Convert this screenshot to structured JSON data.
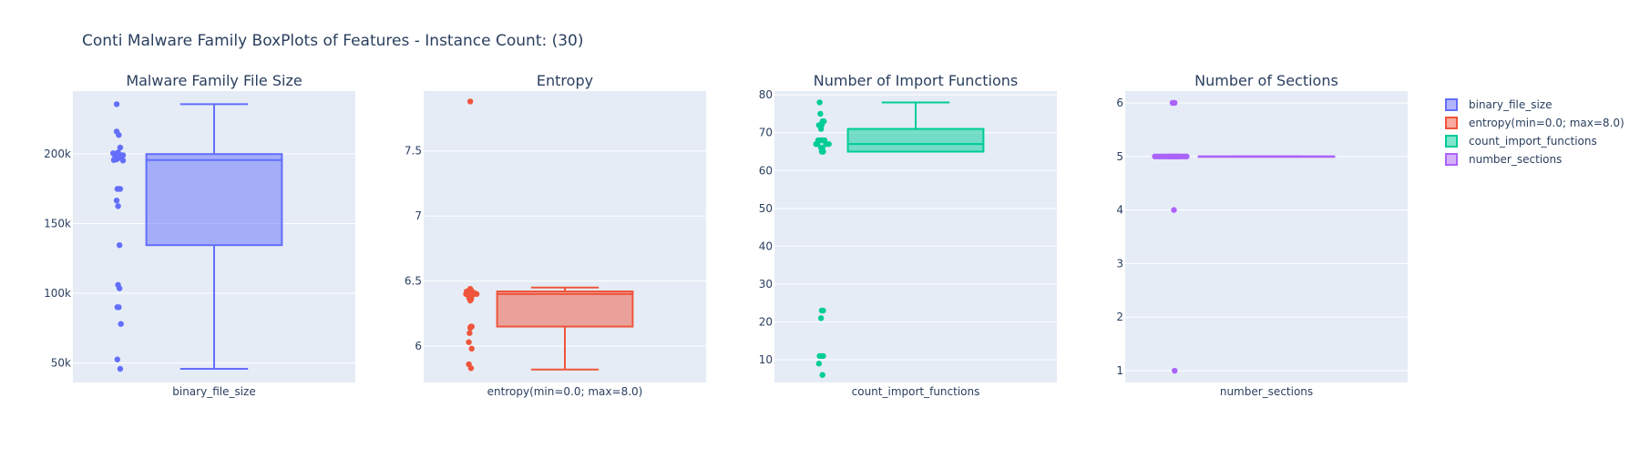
{
  "title": "Conti Malware Family BoxPlots of Features - Instance Count: (30)",
  "legend": {
    "placement": "right",
    "items": [
      {
        "label": "binary_file_size",
        "color": "#636efa"
      },
      {
        "label": "entropy(min=0.0; max=8.0)",
        "color": "#ef553b"
      },
      {
        "label": "count_import_functions",
        "color": "#00cc96"
      },
      {
        "label": "number_sections",
        "color": "#ab63fa"
      }
    ]
  },
  "chart_data": [
    {
      "type": "box",
      "title": "Malware Family File Size",
      "xlabel": "",
      "category": "binary_file_size",
      "color": "#636efa",
      "ylim": [
        36000,
        245000
      ],
      "yticks": [
        50000,
        100000,
        150000,
        200000
      ],
      "ytick_labels": [
        "50k",
        "100k",
        "150k",
        "200k"
      ],
      "box": {
        "min": 45800,
        "q1": 134500,
        "median": 195500,
        "q3": 199800,
        "max": 235600
      },
      "points": [
        {
          "y": 235600,
          "j": 0.1
        },
        {
          "y": 216000,
          "j": 0.1
        },
        {
          "y": 213500,
          "j": 0.25
        },
        {
          "y": 204500,
          "j": 0.35
        },
        {
          "y": 201000,
          "j": 0.2
        },
        {
          "y": 200400,
          "j": -0.15
        },
        {
          "y": 200000,
          "j": 0.05
        },
        {
          "y": 199500,
          "j": 0.3
        },
        {
          "y": 199000,
          "j": 0.55
        },
        {
          "y": 198500,
          "j": 0.15
        },
        {
          "y": 198000,
          "j": 0.4
        },
        {
          "y": 197500,
          "j": 0.0
        },
        {
          "y": 196800,
          "j": 0.2
        },
        {
          "y": 196300,
          "j": -0.05
        },
        {
          "y": 196000,
          "j": 0.1
        },
        {
          "y": 195500,
          "j": -0.1
        },
        {
          "y": 195200,
          "j": 0.55
        },
        {
          "y": 174800,
          "j": 0.15
        },
        {
          "y": 174800,
          "j": 0.25
        },
        {
          "y": 174800,
          "j": 0.35
        },
        {
          "y": 166500,
          "j": 0.1
        },
        {
          "y": 162500,
          "j": 0.2
        },
        {
          "y": 134500,
          "j": 0.3
        },
        {
          "y": 106000,
          "j": 0.2
        },
        {
          "y": 103500,
          "j": 0.3
        },
        {
          "y": 90000,
          "j": 0.15
        },
        {
          "y": 90000,
          "j": 0.25
        },
        {
          "y": 78000,
          "j": 0.4
        },
        {
          "y": 52500,
          "j": 0.15
        },
        {
          "y": 45800,
          "j": 0.35
        }
      ]
    },
    {
      "type": "box",
      "title": "Entropy",
      "xlabel": "",
      "category": "entropy(min=0.0; max=8.0)",
      "color": "#ef553b",
      "ylim": [
        5.72,
        7.96
      ],
      "yticks": [
        6,
        6.5,
        7,
        7.5
      ],
      "ytick_labels": [
        "6",
        "6.5",
        "7",
        "7.5"
      ],
      "box": {
        "min": 5.82,
        "q1": 6.15,
        "median": 6.4,
        "q3": 6.42,
        "max": 6.45
      },
      "points": [
        {
          "y": 7.88,
          "j": 0.3
        },
        {
          "y": 6.44,
          "j": 0.3
        },
        {
          "y": 6.43,
          "j": 0.35
        },
        {
          "y": 6.42,
          "j": 0.05
        },
        {
          "y": 6.42,
          "j": 0.2
        },
        {
          "y": 6.41,
          "j": 0.4
        },
        {
          "y": 6.41,
          "j": 0.55
        },
        {
          "y": 6.4,
          "j": 0.0
        },
        {
          "y": 6.4,
          "j": 0.12
        },
        {
          "y": 6.4,
          "j": 0.25
        },
        {
          "y": 6.4,
          "j": 0.32
        },
        {
          "y": 6.4,
          "j": 0.75
        },
        {
          "y": 6.39,
          "j": 0.18
        },
        {
          "y": 6.39,
          "j": 0.45
        },
        {
          "y": 6.38,
          "j": 0.28
        },
        {
          "y": 6.37,
          "j": 0.22
        },
        {
          "y": 6.36,
          "j": 0.36
        },
        {
          "y": 6.35,
          "j": 0.3
        },
        {
          "y": 6.15,
          "j": 0.35
        },
        {
          "y": 6.15,
          "j": 0.4
        },
        {
          "y": 6.14,
          "j": 0.3
        },
        {
          "y": 6.1,
          "j": 0.25
        },
        {
          "y": 6.03,
          "j": 0.2
        },
        {
          "y": 5.98,
          "j": 0.4
        },
        {
          "y": 5.86,
          "j": 0.2
        },
        {
          "y": 5.83,
          "j": 0.35
        }
      ]
    },
    {
      "type": "box",
      "title": "Number of Import Functions",
      "xlabel": "",
      "category": "count_import_functions",
      "color": "#00cc96",
      "ylim": [
        4,
        81
      ],
      "yticks": [
        10,
        20,
        30,
        40,
        50,
        60,
        70,
        80
      ],
      "ytick_labels": [
        "10",
        "20",
        "30",
        "40",
        "50",
        "60",
        "70",
        "80"
      ],
      "box": {
        "min": 65,
        "q1": 65,
        "median": 67,
        "q3": 71,
        "max": 78
      },
      "points": [
        {
          "y": 78,
          "j": 0.2
        },
        {
          "y": 75,
          "j": 0.25
        },
        {
          "y": 73,
          "j": 0.4
        },
        {
          "y": 73,
          "j": 0.5
        },
        {
          "y": 72,
          "j": 0.15
        },
        {
          "y": 72,
          "j": 0.35
        },
        {
          "y": 71,
          "j": 0.3
        },
        {
          "y": 68,
          "j": 0.1
        },
        {
          "y": 68,
          "j": 0.25
        },
        {
          "y": 68,
          "j": 0.35
        },
        {
          "y": 68,
          "j": 0.45
        },
        {
          "y": 68,
          "j": 0.55
        },
        {
          "y": 67,
          "j": -0.05
        },
        {
          "y": 67,
          "j": 0.05
        },
        {
          "y": 67,
          "j": 0.65
        },
        {
          "y": 67,
          "j": 0.85
        },
        {
          "y": 66,
          "j": 0.3
        },
        {
          "y": 66,
          "j": 0.4
        },
        {
          "y": 65,
          "j": 0.35
        },
        {
          "y": 65,
          "j": 0.45
        },
        {
          "y": 23,
          "j": 0.35
        },
        {
          "y": 23,
          "j": 0.45
        },
        {
          "y": 21,
          "j": 0.3
        },
        {
          "y": 11,
          "j": 0.2
        },
        {
          "y": 11,
          "j": 0.3
        },
        {
          "y": 11,
          "j": 0.45
        },
        {
          "y": 9,
          "j": 0.15
        },
        {
          "y": 6,
          "j": 0.4
        }
      ]
    },
    {
      "type": "box",
      "title": "Number of Sections",
      "xlabel": "",
      "category": "number_sections",
      "color": "#ab63fa",
      "ylim": [
        0.78,
        6.22
      ],
      "yticks": [
        1,
        2,
        3,
        4,
        5,
        6
      ],
      "ytick_labels": [
        "1",
        "2",
        "3",
        "4",
        "5",
        "6"
      ],
      "box": {
        "min": 5,
        "q1": 5,
        "median": 5,
        "q3": 5,
        "max": 5
      },
      "points": [
        {
          "y": 6,
          "j": 0.35
        },
        {
          "y": 6,
          "j": 0.42
        },
        {
          "y": 6,
          "j": 0.5
        },
        {
          "y": 5,
          "j": -0.9
        },
        {
          "y": 5,
          "j": -0.75
        },
        {
          "y": 5,
          "j": -0.6
        },
        {
          "y": 5,
          "j": -0.45
        },
        {
          "y": 5,
          "j": -0.3
        },
        {
          "y": 5,
          "j": -0.15
        },
        {
          "y": 5,
          "j": 0.0
        },
        {
          "y": 5,
          "j": 0.1
        },
        {
          "y": 5,
          "j": 0.2
        },
        {
          "y": 5,
          "j": 0.3
        },
        {
          "y": 5,
          "j": 0.4
        },
        {
          "y": 5,
          "j": 0.5
        },
        {
          "y": 5,
          "j": 0.6
        },
        {
          "y": 5,
          "j": 0.7
        },
        {
          "y": 5,
          "j": 0.8
        },
        {
          "y": 5,
          "j": 0.9
        },
        {
          "y": 5,
          "j": 1.05
        },
        {
          "y": 5,
          "j": 1.2
        },
        {
          "y": 5,
          "j": 1.35
        },
        {
          "y": 4,
          "j": 0.45
        },
        {
          "y": 1,
          "j": 0.5
        }
      ]
    }
  ]
}
